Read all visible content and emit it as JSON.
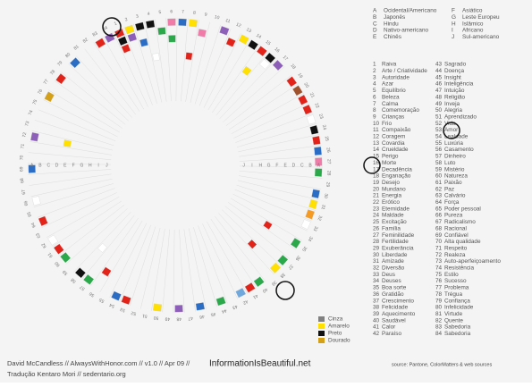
{
  "cultures": [
    {
      "letter": "A",
      "name": "Ocidental/Americano"
    },
    {
      "letter": "B",
      "name": "Japonês"
    },
    {
      "letter": "C",
      "name": "Hindu"
    },
    {
      "letter": "D",
      "name": "Nativo-americano"
    },
    {
      "letter": "E",
      "name": "Chinês"
    },
    {
      "letter": "F",
      "name": "Asiático"
    },
    {
      "letter": "G",
      "name": "Leste Europeu"
    },
    {
      "letter": "H",
      "name": "Islâmico"
    },
    {
      "letter": "I",
      "name": "Africano"
    },
    {
      "letter": "J",
      "name": "Sul-americano"
    }
  ],
  "meanings": [
    {
      "number": 1,
      "label": "Raiva"
    },
    {
      "number": 2,
      "label": "Arte / Criatividade"
    },
    {
      "number": 3,
      "label": "Autoridade"
    },
    {
      "number": 4,
      "label": "Azar"
    },
    {
      "number": 5,
      "label": "Equilíbrio"
    },
    {
      "number": 6,
      "label": "Beleza"
    },
    {
      "number": 7,
      "label": "Calma"
    },
    {
      "number": 8,
      "label": "Comemoração"
    },
    {
      "number": 9,
      "label": "Crianças"
    },
    {
      "number": 10,
      "label": "Frio"
    },
    {
      "number": 11,
      "label": "Compaixão"
    },
    {
      "number": 12,
      "label": "Coragem"
    },
    {
      "number": 13,
      "label": "Covardia"
    },
    {
      "number": 14,
      "label": "Crueldade"
    },
    {
      "number": 15,
      "label": "Perigo"
    },
    {
      "number": 16,
      "label": "Morte"
    },
    {
      "number": 17,
      "label": "Decadência"
    },
    {
      "number": 18,
      "label": "Enganação"
    },
    {
      "number": 19,
      "label": "Desejo"
    },
    {
      "number": 20,
      "label": "Mundano"
    },
    {
      "number": 21,
      "label": "Energia"
    },
    {
      "number": 22,
      "label": "Erótico"
    },
    {
      "number": 23,
      "label": "Eternidade"
    },
    {
      "number": 24,
      "label": "Maldade"
    },
    {
      "number": 25,
      "label": "Excitação"
    },
    {
      "number": 26,
      "label": "Família"
    },
    {
      "number": 27,
      "label": "Feminilidade"
    },
    {
      "number": 28,
      "label": "Fertilidade"
    },
    {
      "number": 29,
      "label": "Exuberância"
    },
    {
      "number": 30,
      "label": "Liberdade"
    },
    {
      "number": 31,
      "label": "Amizade"
    },
    {
      "number": 32,
      "label": "Diversão"
    },
    {
      "number": 33,
      "label": "Deus"
    },
    {
      "number": 34,
      "label": "Deuses"
    },
    {
      "number": 35,
      "label": "Boa sorte"
    },
    {
      "number": 36,
      "label": "Gratidão"
    },
    {
      "number": 37,
      "label": "Crescimento"
    },
    {
      "number": 38,
      "label": "Felicidade"
    },
    {
      "number": 39,
      "label": "Aquecimento"
    },
    {
      "number": 40,
      "label": "Saudável"
    },
    {
      "number": 41,
      "label": "Calor"
    },
    {
      "number": 42,
      "label": "Paraíso"
    },
    {
      "number": 43,
      "label": "Sagrado"
    },
    {
      "number": 44,
      "label": "Doença"
    },
    {
      "number": 45,
      "label": "Insight"
    },
    {
      "number": 46,
      "label": "Inteligência"
    },
    {
      "number": 47,
      "label": "Intuição"
    },
    {
      "number": 48,
      "label": "Religião"
    },
    {
      "number": 49,
      "label": "Inveja"
    },
    {
      "number": 50,
      "label": "Alegria"
    },
    {
      "number": 51,
      "label": "Aprendizado"
    },
    {
      "number": 52,
      "label": "Vida"
    },
    {
      "number": 53,
      "label": "Amor"
    },
    {
      "number": 54,
      "label": "Lealdade"
    },
    {
      "number": 55,
      "label": "Luxúria"
    },
    {
      "number": 56,
      "label": "Casamento"
    },
    {
      "number": 57,
      "label": "Dinheiro"
    },
    {
      "number": 58,
      "label": "Luto"
    },
    {
      "number": 59,
      "label": "Mistério"
    },
    {
      "number": 60,
      "label": "Natureza"
    },
    {
      "number": 61,
      "label": "Paixão"
    },
    {
      "number": 62,
      "label": "Paz"
    },
    {
      "number": 63,
      "label": "Calvário"
    },
    {
      "number": 64,
      "label": "Força"
    },
    {
      "number": 65,
      "label": "Poder pessoal"
    },
    {
      "number": 66,
      "label": "Pureza"
    },
    {
      "number": 67,
      "label": "Radicalismo"
    },
    {
      "number": 68,
      "label": "Racional"
    },
    {
      "number": 69,
      "label": "Confiável"
    },
    {
      "number": 70,
      "label": "Alta qualidade"
    },
    {
      "number": 71,
      "label": "Respeito"
    },
    {
      "number": 72,
      "label": "Realeza"
    },
    {
      "number": 73,
      "label": "Auto-aperfeiçoamento"
    },
    {
      "number": 74,
      "label": "Resistência"
    },
    {
      "number": 75,
      "label": "Estilo"
    },
    {
      "number": 76,
      "label": "Sucesso"
    },
    {
      "number": 77,
      "label": "Problema"
    },
    {
      "number": 78,
      "label": "Trégua"
    },
    {
      "number": 79,
      "label": "Confiança"
    },
    {
      "number": 80,
      "label": "Infelicidade"
    },
    {
      "number": 81,
      "label": "Virtude"
    },
    {
      "number": 82,
      "label": "Quente"
    },
    {
      "number": 83,
      "label": "Sabedoria"
    },
    {
      "number": 84,
      "label": "Sabedoria"
    }
  ],
  "associations": [
    [
      1,
      "A",
      "#e2231a"
    ],
    [
      1,
      "B",
      "#111111"
    ],
    [
      1,
      "C",
      "#e2231a"
    ],
    [
      2,
      "A",
      "#ffe000"
    ],
    [
      2,
      "B",
      "#8e5fb8"
    ],
    [
      3,
      "A",
      "#111111"
    ],
    [
      3,
      "C",
      "#2b6cc4"
    ],
    [
      4,
      "A",
      "#111111"
    ],
    [
      4,
      "E",
      "#ffffff"
    ],
    [
      5,
      "B",
      "#2aa84a"
    ],
    [
      6,
      "A",
      "#f07aa8"
    ],
    [
      6,
      "C",
      "#2aa84a"
    ],
    [
      7,
      "A",
      "#2b6cc4"
    ],
    [
      8,
      "A",
      "#ffe000"
    ],
    [
      8,
      "E",
      "#e2231a"
    ],
    [
      9,
      "B",
      "#f07aa8"
    ],
    [
      11,
      "A",
      "#8e5fb8"
    ],
    [
      12,
      "B",
      "#e2231a"
    ],
    [
      13,
      "A",
      "#ffe000"
    ],
    [
      14,
      "A",
      "#111111"
    ],
    [
      15,
      "A",
      "#e2231a"
    ],
    [
      15,
      "D",
      "#ffe000"
    ],
    [
      16,
      "A",
      "#111111"
    ],
    [
      16,
      "B",
      "#ffffff"
    ],
    [
      17,
      "A",
      "#8e5fb8"
    ],
    [
      19,
      "A",
      "#e2231a"
    ],
    [
      20,
      "A",
      "#a0522d"
    ],
    [
      21,
      "A",
      "#e2231a"
    ],
    [
      22,
      "A",
      "#e2231a"
    ],
    [
      23,
      "A",
      "#ffffff"
    ],
    [
      24,
      "A",
      "#111111"
    ],
    [
      25,
      "A",
      "#e2231a"
    ],
    [
      26,
      "A",
      "#2b6cc4"
    ],
    [
      27,
      "A",
      "#f07aa8"
    ],
    [
      28,
      "A",
      "#2aa84a"
    ],
    [
      30,
      "A",
      "#2b6cc4"
    ],
    [
      31,
      "A",
      "#ffe000"
    ],
    [
      32,
      "A",
      "#f59a23"
    ],
    [
      33,
      "A",
      "#ffffff"
    ],
    [
      35,
      "A",
      "#2aa84a"
    ],
    [
      35,
      "E",
      "#e2231a"
    ],
    [
      37,
      "A",
      "#2aa84a"
    ],
    [
      38,
      "A",
      "#ffe000"
    ],
    [
      38,
      "E",
      "#e2231a"
    ],
    [
      40,
      "A",
      "#2aa84a"
    ],
    [
      41,
      "A",
      "#e2231a"
    ],
    [
      42,
      "A",
      "#6fa8dc"
    ],
    [
      44,
      "A",
      "#2aa84a"
    ],
    [
      46,
      "A",
      "#2b6cc4"
    ],
    [
      48,
      "A",
      "#8e5fb8"
    ],
    [
      50,
      "A",
      "#ffe000"
    ],
    [
      53,
      "A",
      "#e2231a"
    ],
    [
      54,
      "A",
      "#2b6cc4"
    ],
    [
      56,
      "C",
      "#e2231a"
    ],
    [
      57,
      "A",
      "#2aa84a"
    ],
    [
      58,
      "A",
      "#111111"
    ],
    [
      58,
      "E",
      "#ffffff"
    ],
    [
      60,
      "A",
      "#2aa84a"
    ],
    [
      61,
      "A",
      "#e2231a"
    ],
    [
      62,
      "A",
      "#ffffff"
    ],
    [
      64,
      "A",
      "#e2231a"
    ],
    [
      66,
      "A",
      "#ffffff"
    ],
    [
      69,
      "A",
      "#2b6cc4"
    ],
    [
      72,
      "A",
      "#8e5fb8"
    ],
    [
      72,
      "E",
      "#ffe000"
    ],
    [
      76,
      "A",
      "#d4a017"
    ],
    [
      78,
      "A",
      "#e2231a"
    ],
    [
      80,
      "A",
      "#2b6cc4"
    ],
    [
      83,
      "A",
      "#e2231a"
    ],
    [
      84,
      "A",
      "#8e5fb8"
    ]
  ],
  "legend": [
    {
      "label": "Cinza",
      "color": "#808080"
    },
    {
      "label": "Amarelo",
      "color": "#ffe000"
    },
    {
      "label": "Preto",
      "color": "#111111"
    },
    {
      "label": "Dourado",
      "color": "#d4a017"
    }
  ],
  "footer": {
    "credit": "David McCandless // AlwaysWithHonor.com // v1.0 // Apr 09 //",
    "site": "InformationIsBeautiful.net",
    "translation": "Tradução Kentaro Mori // sedentario.org",
    "source": "source: Pantone, ColorMatters & web sources"
  }
}
